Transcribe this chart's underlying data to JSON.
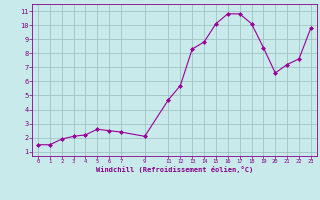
{
  "x": [
    0,
    1,
    2,
    3,
    4,
    5,
    6,
    7,
    9,
    11,
    12,
    13,
    14,
    15,
    16,
    17,
    18,
    19,
    20,
    21,
    22,
    23
  ],
  "y": [
    1.5,
    1.5,
    1.9,
    2.1,
    2.2,
    2.6,
    2.5,
    2.4,
    2.1,
    4.7,
    5.7,
    8.3,
    8.8,
    10.1,
    10.8,
    10.8,
    10.1,
    8.4,
    6.6,
    7.2,
    7.6,
    9.8
  ],
  "line_color": "#990099",
  "marker": "D",
  "marker_size": 2.0,
  "bg_color": "#c8eaea",
  "grid_color": "#99bbbb",
  "xlabel": "Windchill (Refroidissement éolien,°C)",
  "xlabel_color": "#880088",
  "tick_color": "#880088",
  "xticks": [
    0,
    1,
    2,
    3,
    4,
    5,
    6,
    7,
    9,
    11,
    12,
    13,
    14,
    15,
    16,
    17,
    18,
    19,
    20,
    21,
    22,
    23
  ],
  "yticks": [
    1,
    2,
    3,
    4,
    5,
    6,
    7,
    8,
    9,
    10,
    11
  ],
  "xlim": [
    -0.5,
    23.5
  ],
  "ylim": [
    0.7,
    11.5
  ],
  "spine_color": "#880088"
}
